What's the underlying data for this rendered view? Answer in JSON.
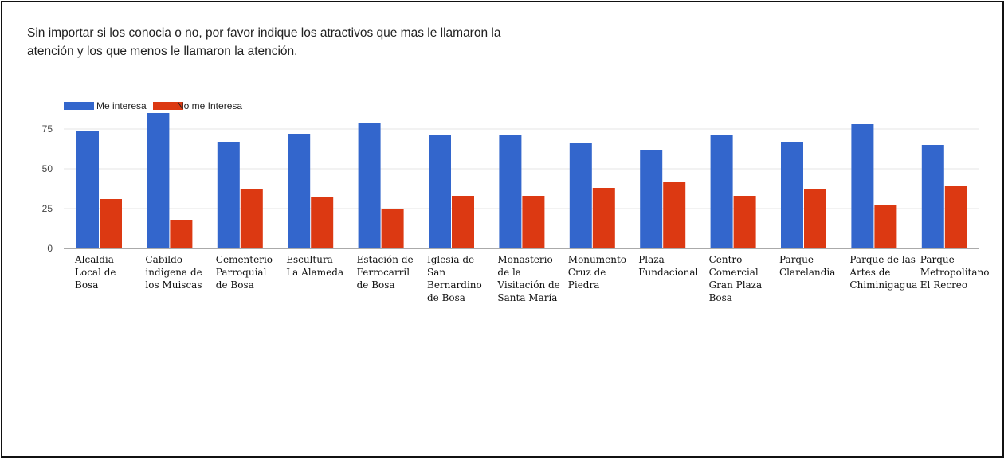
{
  "question": {
    "line1": "Sin importar si los conocia o no, por favor indique los atractivos que mas le llamaron la",
    "line2": "atención y los que menos le llamaron la atención."
  },
  "colors": {
    "me_interesa": "#3366cc",
    "no_me_interesa": "#dc3912",
    "gridline": "#e6e6e6",
    "baseline": "#555555"
  },
  "chart_data": {
    "type": "bar",
    "title": "",
    "xlabel": "",
    "ylabel": "",
    "ylim": [
      0,
      85
    ],
    "yticks": [
      0,
      25,
      50,
      75
    ],
    "grid": true,
    "legend_position": "top-left",
    "categories": [
      [
        "Alcaldia",
        "Local de",
        "Bosa"
      ],
      [
        "Cabildo",
        "indigena de",
        "los Muiscas"
      ],
      [
        "Cementerio",
        "Parroquial",
        "de Bosa"
      ],
      [
        "Escultura",
        "La Alameda"
      ],
      [
        "Estación de",
        "Ferrocarril",
        "de Bosa"
      ],
      [
        "Iglesia de",
        "San",
        "Bernardino",
        "de Bosa"
      ],
      [
        "Monasterio",
        "de la",
        "Visitación de",
        "Santa María"
      ],
      [
        "Monumento",
        "Cruz de",
        "Piedra"
      ],
      [
        "Plaza",
        "Fundacional"
      ],
      [
        "Centro",
        "Comercial",
        "Gran Plaza",
        "Bosa"
      ],
      [
        "Parque",
        "Clarelandia"
      ],
      [
        "Parque de las",
        "Artes de",
        "Chiminigagua"
      ],
      [
        "Parque",
        "Metropolitano",
        "El Recreo"
      ]
    ],
    "series": [
      {
        "name": "Me interesa",
        "color": "#3366cc",
        "values": [
          74,
          85,
          67,
          72,
          79,
          71,
          71,
          66,
          62,
          71,
          67,
          78,
          65
        ]
      },
      {
        "name": "No me Interesa",
        "color": "#dc3912",
        "values": [
          31,
          18,
          37,
          32,
          25,
          33,
          33,
          38,
          42,
          33,
          37,
          27,
          39
        ]
      }
    ]
  }
}
